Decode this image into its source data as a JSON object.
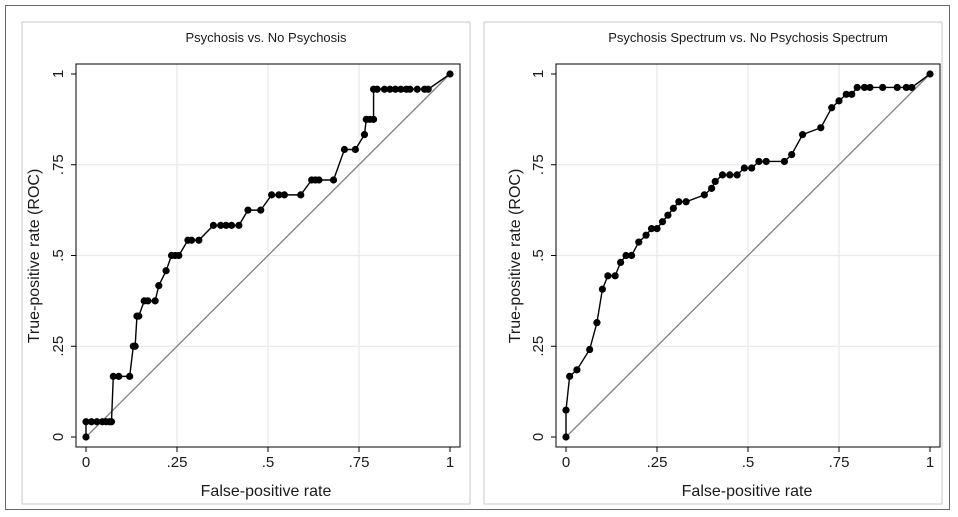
{
  "colors": {
    "background": "#ffffff",
    "grid": "#e6eaf0",
    "axis": "#000000",
    "reference_line": "#808080",
    "curve": "#000000",
    "frame": "#6a6a6a"
  },
  "chart_data": [
    {
      "type": "line",
      "title": "Psychosis vs. No Psychosis",
      "xlabel": "False-positive rate",
      "ylabel": "True-positive rate (ROC)",
      "xlim": [
        0,
        1
      ],
      "ylim": [
        0,
        1
      ],
      "xticks": [
        {
          "value": 0,
          "label": "0"
        },
        {
          "value": 0.25,
          "label": ".25"
        },
        {
          "value": 0.5,
          "label": ".5"
        },
        {
          "value": 0.75,
          "label": ".75"
        },
        {
          "value": 1,
          "label": "1"
        }
      ],
      "yticks": [
        {
          "value": 0,
          "label": "0"
        },
        {
          "value": 0.25,
          "label": ".25"
        },
        {
          "value": 0.5,
          "label": ".5"
        },
        {
          "value": 0.75,
          "label": ".75"
        },
        {
          "value": 1,
          "label": "1"
        }
      ],
      "grid": true,
      "reference_line": {
        "x": [
          0,
          1
        ],
        "y": [
          0,
          1
        ]
      },
      "series": [
        {
          "x": [
            0,
            0,
            0.015,
            0.03,
            0.045,
            0.055,
            0.065,
            0.07,
            0.075,
            0.09,
            0.12,
            0.13,
            0.135,
            0.14,
            0.145,
            0.16,
            0.17,
            0.19,
            0.2,
            0.22,
            0.235,
            0.245,
            0.255,
            0.28,
            0.29,
            0.31,
            0.35,
            0.37,
            0.385,
            0.4,
            0.42,
            0.445,
            0.48,
            0.51,
            0.53,
            0.545,
            0.59,
            0.62,
            0.63,
            0.64,
            0.68,
            0.71,
            0.74,
            0.765,
            0.77,
            0.78,
            0.79,
            0.79,
            0.8,
            0.82,
            0.835,
            0.85,
            0.865,
            0.88,
            0.89,
            0.91,
            0.93,
            0.94,
            1
          ],
          "y": [
            0,
            0.042,
            0.042,
            0.042,
            0.042,
            0.042,
            0.042,
            0.042,
            0.167,
            0.167,
            0.167,
            0.25,
            0.25,
            0.333,
            0.333,
            0.375,
            0.375,
            0.375,
            0.417,
            0.458,
            0.5,
            0.5,
            0.5,
            0.542,
            0.542,
            0.542,
            0.583,
            0.583,
            0.583,
            0.583,
            0.583,
            0.625,
            0.625,
            0.667,
            0.667,
            0.667,
            0.667,
            0.708,
            0.708,
            0.708,
            0.708,
            0.792,
            0.792,
            0.833,
            0.875,
            0.875,
            0.875,
            0.958,
            0.958,
            0.958,
            0.958,
            0.958,
            0.958,
            0.958,
            0.958,
            0.958,
            0.958,
            0.958,
            1
          ]
        }
      ]
    },
    {
      "type": "line",
      "title": "Psychosis Spectrum vs. No Psychosis Spectrum",
      "xlabel": "False-positive rate",
      "ylabel": "True-positive rate (ROC)",
      "xlim": [
        0,
        1
      ],
      "ylim": [
        0,
        1
      ],
      "xticks": [
        {
          "value": 0,
          "label": "0"
        },
        {
          "value": 0.25,
          "label": ".25"
        },
        {
          "value": 0.5,
          "label": ".5"
        },
        {
          "value": 0.75,
          "label": ".75"
        },
        {
          "value": 1,
          "label": "1"
        }
      ],
      "yticks": [
        {
          "value": 0,
          "label": "0"
        },
        {
          "value": 0.25,
          "label": ".25"
        },
        {
          "value": 0.5,
          "label": ".5"
        },
        {
          "value": 0.75,
          "label": ".75"
        },
        {
          "value": 1,
          "label": "1"
        }
      ],
      "grid": true,
      "reference_line": {
        "x": [
          0,
          1
        ],
        "y": [
          0,
          1
        ]
      },
      "series": [
        {
          "x": [
            0,
            0,
            0.01,
            0.03,
            0.065,
            0.085,
            0.1,
            0.115,
            0.135,
            0.15,
            0.165,
            0.18,
            0.2,
            0.22,
            0.235,
            0.25,
            0.265,
            0.28,
            0.295,
            0.31,
            0.33,
            0.38,
            0.4,
            0.41,
            0.43,
            0.45,
            0.47,
            0.49,
            0.51,
            0.53,
            0.55,
            0.6,
            0.62,
            0.65,
            0.7,
            0.73,
            0.75,
            0.77,
            0.785,
            0.8,
            0.82,
            0.835,
            0.87,
            0.91,
            0.935,
            0.95,
            1
          ],
          "y": [
            0,
            0.074,
            0.167,
            0.185,
            0.241,
            0.315,
            0.407,
            0.444,
            0.444,
            0.481,
            0.5,
            0.5,
            0.537,
            0.556,
            0.574,
            0.574,
            0.593,
            0.611,
            0.63,
            0.648,
            0.648,
            0.667,
            0.685,
            0.704,
            0.722,
            0.722,
            0.722,
            0.741,
            0.741,
            0.759,
            0.759,
            0.759,
            0.778,
            0.833,
            0.852,
            0.907,
            0.926,
            0.944,
            0.944,
            0.963,
            0.963,
            0.963,
            0.963,
            0.963,
            0.963,
            0.963,
            1
          ]
        }
      ]
    }
  ]
}
